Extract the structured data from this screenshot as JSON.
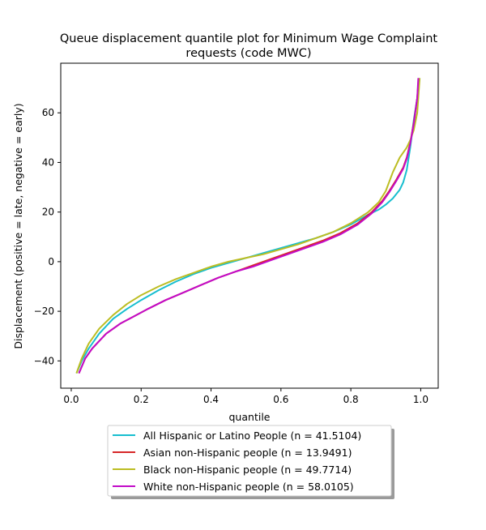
{
  "chart_data": {
    "type": "line",
    "title_lines": [
      "Queue displacement quantile plot for Minimum Wage Complaint",
      "requests (code MWC)"
    ],
    "xlabel": "quantile",
    "ylabel": "Displacement (positive = late, negative = early)",
    "xlim": [
      -0.03,
      1.05
    ],
    "ylim": [
      -51,
      80
    ],
    "xticks": [
      0.0,
      0.2,
      0.4,
      0.6,
      0.8,
      1.0
    ],
    "xtick_labels": [
      "0.0",
      "0.2",
      "0.4",
      "0.6",
      "0.8",
      "1.0"
    ],
    "yticks": [
      -40,
      -20,
      0,
      20,
      40,
      60
    ],
    "ytick_labels": [
      "−40",
      "−20",
      "0",
      "20",
      "40",
      "60"
    ],
    "grid": false,
    "legend_position": "bottom-center, below plot",
    "series": [
      {
        "name": "All Hispanic or Latino People (n = 41.5104)",
        "color": "#17becf",
        "x": [
          0.015,
          0.03,
          0.05,
          0.08,
          0.12,
          0.16,
          0.2,
          0.25,
          0.3,
          0.35,
          0.4,
          0.45,
          0.5,
          0.55,
          0.6,
          0.65,
          0.7,
          0.75,
          0.8,
          0.85,
          0.88,
          0.9,
          0.92,
          0.94,
          0.95,
          0.96,
          0.97,
          0.98,
          0.99,
          0.997
        ],
        "y": [
          -45,
          -40,
          -35,
          -29,
          -23,
          -19,
          -15.5,
          -11.5,
          -8,
          -5,
          -2.5,
          -0.5,
          1.5,
          3.5,
          5.5,
          7.5,
          9.5,
          12,
          15,
          19,
          21,
          23,
          25.5,
          29,
          32,
          37,
          46,
          57,
          66,
          74
        ]
      },
      {
        "name": "Asian non-Hispanic people (n = 13.9491)",
        "color": "#d62728",
        "x": [
          0.022,
          0.04,
          0.06,
          0.1,
          0.14,
          0.18,
          0.22,
          0.27,
          0.32,
          0.37,
          0.42,
          0.47,
          0.52,
          0.57,
          0.62,
          0.67,
          0.72,
          0.77,
          0.82,
          0.86,
          0.89,
          0.91,
          0.93,
          0.95,
          0.96,
          0.97,
          0.98,
          0.99,
          0.994
        ],
        "y": [
          -45,
          -39,
          -35,
          -29,
          -25,
          -22,
          -19,
          -15.5,
          -12.5,
          -9.5,
          -6.5,
          -4,
          -1.5,
          1,
          3.5,
          6,
          8.5,
          11.5,
          15.5,
          20,
          24.5,
          28.5,
          33,
          38,
          42,
          48,
          56,
          66,
          74
        ]
      },
      {
        "name": "Black non-Hispanic people (n = 49.7714)",
        "color": "#bcbd22",
        "x": [
          0.015,
          0.03,
          0.05,
          0.08,
          0.12,
          0.16,
          0.2,
          0.25,
          0.3,
          0.35,
          0.4,
          0.45,
          0.5,
          0.55,
          0.6,
          0.65,
          0.7,
          0.75,
          0.8,
          0.85,
          0.88,
          0.9,
          0.92,
          0.94,
          0.96,
          0.97,
          0.98,
          0.99,
          0.997
        ],
        "y": [
          -45,
          -39,
          -33,
          -27,
          -21.5,
          -17,
          -13.5,
          -10,
          -7,
          -4.5,
          -2,
          0,
          1.5,
          3,
          5,
          7,
          9.5,
          12,
          15.5,
          20,
          24,
          28.5,
          36,
          42,
          46,
          49,
          53,
          60,
          74
        ]
      },
      {
        "name": "White non-Hispanic people (n = 58.0105)",
        "color": "#c20bc8",
        "x": [
          0.022,
          0.04,
          0.06,
          0.1,
          0.14,
          0.18,
          0.22,
          0.27,
          0.32,
          0.37,
          0.42,
          0.47,
          0.52,
          0.57,
          0.62,
          0.67,
          0.72,
          0.77,
          0.82,
          0.86,
          0.89,
          0.91,
          0.93,
          0.95,
          0.96,
          0.97,
          0.98,
          0.99,
          0.993
        ],
        "y": [
          -45,
          -39,
          -35,
          -29,
          -25,
          -22,
          -19,
          -15.5,
          -12.5,
          -9.5,
          -6.5,
          -4,
          -2,
          0.5,
          3,
          5.5,
          8,
          11,
          15,
          19.5,
          24,
          28,
          32.5,
          37.5,
          41.5,
          47.5,
          55.5,
          66,
          74
        ]
      }
    ]
  }
}
